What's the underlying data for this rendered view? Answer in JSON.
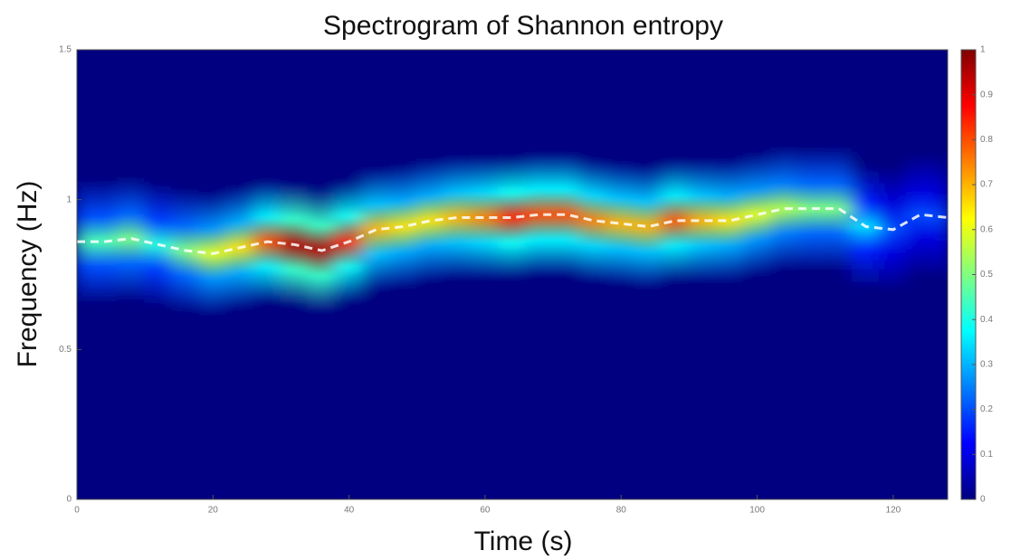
{
  "chart_data": {
    "type": "spectrogram",
    "title": "Spectrogram of Shannon entropy",
    "x_label": "Time (s)",
    "y_label": "Frequency (Hz)",
    "x": [
      0,
      4,
      8,
      12,
      16,
      20,
      24,
      28,
      32,
      36,
      40,
      44,
      48,
      52,
      56,
      60,
      64,
      68,
      72,
      76,
      80,
      84,
      88,
      92,
      96,
      100,
      104,
      108,
      112,
      116,
      120,
      124,
      128
    ],
    "ridge_frequency": [
      0.86,
      0.86,
      0.87,
      0.85,
      0.83,
      0.82,
      0.84,
      0.86,
      0.85,
      0.83,
      0.86,
      0.9,
      0.91,
      0.93,
      0.94,
      0.94,
      0.94,
      0.95,
      0.95,
      0.93,
      0.92,
      0.91,
      0.93,
      0.93,
      0.93,
      0.95,
      0.97,
      0.97,
      0.97,
      0.91,
      0.9,
      0.95,
      0.94
    ],
    "ridge_intensity": [
      0.45,
      0.45,
      0.5,
      0.4,
      0.5,
      0.6,
      0.65,
      0.8,
      0.95,
      0.95,
      0.85,
      0.7,
      0.65,
      0.65,
      0.7,
      0.75,
      0.85,
      0.8,
      0.8,
      0.75,
      0.7,
      0.7,
      0.8,
      0.7,
      0.65,
      0.6,
      0.55,
      0.5,
      0.5,
      0.35,
      0.2,
      0.2,
      0.2
    ],
    "colormap": "jet",
    "line_color": "#ffffff",
    "xlim": [
      0,
      128
    ],
    "xticks": [
      0,
      20,
      40,
      60,
      80,
      100,
      120
    ],
    "ylim": [
      0,
      1.5
    ],
    "yticks": [
      0,
      0.5,
      1,
      1.5
    ],
    "clim": [
      0,
      1
    ],
    "cticks": [
      0,
      0.1,
      0.2,
      0.3,
      0.4,
      0.5,
      0.6,
      0.7,
      0.8,
      0.9,
      1
    ]
  }
}
